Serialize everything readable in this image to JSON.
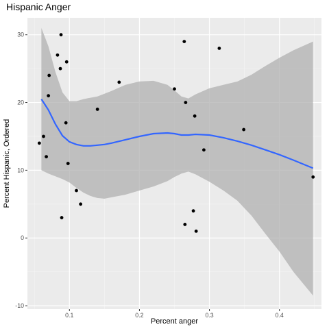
{
  "chart_data": {
    "type": "scatter",
    "title": "Hispanic Anger",
    "xlabel": "Percent anger",
    "ylabel": "Percent Hispanic, Ordered",
    "xlim": [
      0.04,
      0.46
    ],
    "ylim": [
      -10.5,
      32.5
    ],
    "x_ticks": [
      0.1,
      0.2,
      0.3,
      0.4
    ],
    "x_tick_labels": [
      "0.1",
      "0.2",
      "0.3",
      "0.4"
    ],
    "y_ticks": [
      -10,
      0,
      10,
      20,
      30
    ],
    "y_tick_labels": [
      "-10",
      "0",
      "10",
      "20",
      "30"
    ],
    "grid": true,
    "legend": "none",
    "colors": {
      "panel": "#ebebeb",
      "grid_major": "#ffffff",
      "grid_minor": "#f5f5f5",
      "points": "#000000",
      "smooth_line": "#3366ff",
      "confidence_band": "#b0b0b0"
    },
    "points": [
      {
        "x": 0.057,
        "y": 14
      },
      {
        "x": 0.063,
        "y": 15
      },
      {
        "x": 0.067,
        "y": 12
      },
      {
        "x": 0.07,
        "y": 21
      },
      {
        "x": 0.071,
        "y": 24
      },
      {
        "x": 0.083,
        "y": 27
      },
      {
        "x": 0.087,
        "y": 25
      },
      {
        "x": 0.088,
        "y": 30
      },
      {
        "x": 0.089,
        "y": 3
      },
      {
        "x": 0.095,
        "y": 17
      },
      {
        "x": 0.096,
        "y": 26
      },
      {
        "x": 0.098,
        "y": 11
      },
      {
        "x": 0.11,
        "y": 7
      },
      {
        "x": 0.116,
        "y": 5
      },
      {
        "x": 0.14,
        "y": 19
      },
      {
        "x": 0.171,
        "y": 23
      },
      {
        "x": 0.25,
        "y": 22
      },
      {
        "x": 0.264,
        "y": 29
      },
      {
        "x": 0.265,
        "y": 2
      },
      {
        "x": 0.266,
        "y": 20
      },
      {
        "x": 0.277,
        "y": 4
      },
      {
        "x": 0.279,
        "y": 18
      },
      {
        "x": 0.281,
        "y": 1
      },
      {
        "x": 0.292,
        "y": 13
      },
      {
        "x": 0.314,
        "y": 28
      },
      {
        "x": 0.349,
        "y": 16
      },
      {
        "x": 0.448,
        "y": 9
      }
    ],
    "smooth": {
      "x": [
        0.06,
        0.07,
        0.08,
        0.09,
        0.1,
        0.11,
        0.12,
        0.13,
        0.14,
        0.15,
        0.16,
        0.18,
        0.2,
        0.22,
        0.24,
        0.25,
        0.26,
        0.27,
        0.28,
        0.3,
        0.32,
        0.34,
        0.36,
        0.38,
        0.4,
        0.42,
        0.448
      ],
      "y": [
        20.5,
        18.9,
        16.8,
        15.1,
        14.2,
        13.8,
        13.6,
        13.6,
        13.7,
        13.8,
        14.0,
        14.5,
        15.0,
        15.4,
        15.5,
        15.4,
        15.2,
        15.2,
        15.3,
        15.2,
        14.8,
        14.3,
        13.7,
        13.0,
        12.3,
        11.5,
        10.3
      ],
      "upper": [
        31.0,
        28.3,
        24.5,
        21.5,
        20.2,
        20.2,
        20.5,
        20.7,
        20.9,
        21.3,
        21.7,
        22.6,
        23.1,
        23.2,
        22.6,
        21.8,
        20.9,
        20.6,
        21.2,
        22.1,
        22.6,
        23.1,
        24.1,
        25.4,
        26.6,
        27.7,
        29.0
      ],
      "lower": [
        10.0,
        9.5,
        9.1,
        8.7,
        8.2,
        7.4,
        6.7,
        6.2,
        5.9,
        5.8,
        6.0,
        6.4,
        7.0,
        7.6,
        8.4,
        9.0,
        9.5,
        9.8,
        9.4,
        8.3,
        7.0,
        5.5,
        3.3,
        0.6,
        -2.0,
        -5.0,
        -8.5
      ]
    }
  }
}
